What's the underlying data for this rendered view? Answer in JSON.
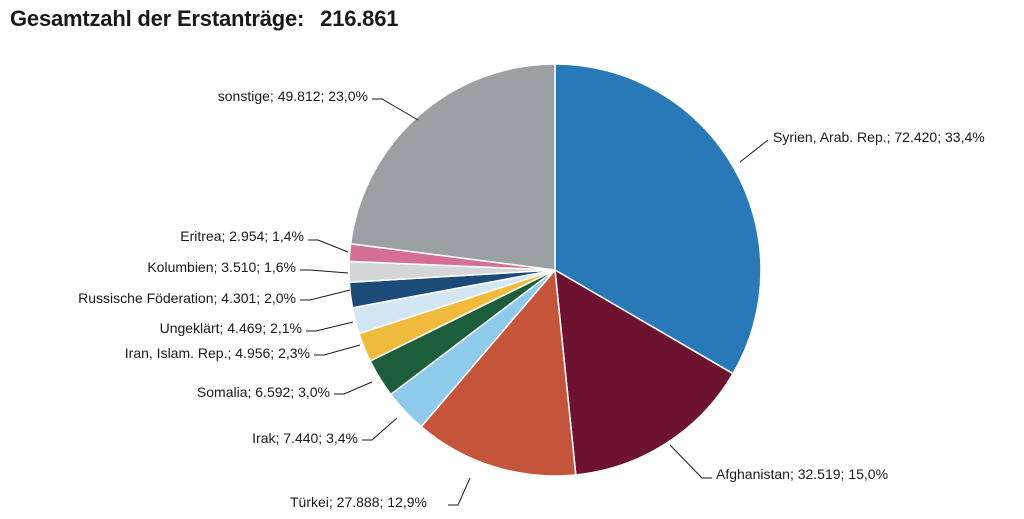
{
  "header": {
    "title": "Gesamtzahl der Erstanträge:",
    "total": "216.861"
  },
  "chart_data": {
    "type": "pie",
    "title": "Gesamtzahl der Erstanträge: 216.861",
    "slices": [
      {
        "name": "Syrien, Arab. Rep.",
        "value": 72420,
        "value_label": "72.420",
        "percent_label": "33,4%",
        "color": "#2979b9"
      },
      {
        "name": "Afghanistan",
        "value": 32519,
        "value_label": "32.519",
        "percent_label": "15,0%",
        "color": "#6d1230"
      },
      {
        "name": "Türkei",
        "value": 27888,
        "value_label": "27.888",
        "percent_label": "12,9%",
        "color": "#c5553a"
      },
      {
        "name": "Irak",
        "value": 7440,
        "value_label": "7.440",
        "percent_label": "3,4%",
        "color": "#8ecae9"
      },
      {
        "name": "Somalia",
        "value": 6592,
        "value_label": "6.592",
        "percent_label": "3,0%",
        "color": "#1c5d3b"
      },
      {
        "name": "Iran, Islam. Rep.",
        "value": 4956,
        "value_label": "4.956",
        "percent_label": "2,3%",
        "color": "#f0bb3c"
      },
      {
        "name": "Ungeklärt",
        "value": 4469,
        "value_label": "4.469",
        "percent_label": "2,1%",
        "color": "#d3e6f3"
      },
      {
        "name": "Russische Föderation",
        "value": 4301,
        "value_label": "4.301",
        "percent_label": "2,0%",
        "color": "#1c4b7a"
      },
      {
        "name": "Kolumbien",
        "value": 3510,
        "value_label": "3.510",
        "percent_label": "1,6%",
        "color": "#d4d6d8"
      },
      {
        "name": "Eritrea",
        "value": 2954,
        "value_label": "2.954",
        "percent_label": "1,4%",
        "color": "#d56f96"
      },
      {
        "name": "sonstige",
        "value": 49812,
        "value_label": "49.812",
        "percent_label": "23,0%",
        "color": "#9aa0a3"
      }
    ],
    "labels": [
      "Syrien, Arab. Rep.; 72.420; 33,4%",
      "Afghanistan; 32.519; 15,0%",
      "Türkei; 27.888; 12,9%",
      "Irak; 7.440; 3,4%",
      "Somalia; 6.592; 3,0%",
      "Iran, Islam. Rep.; 4.956; 2,3%",
      "Ungeklärt; 4.469; 2,1%",
      "Russische Föderation; 4.301; 2,0%",
      "Kolumbien; 3.510; 1,6%",
      "Eritrea; 2.954; 1,4%",
      "sonstige; 49.812; 23,0%"
    ],
    "start_angle": "12 o'clock",
    "direction": "clockwise",
    "legend": "none"
  }
}
